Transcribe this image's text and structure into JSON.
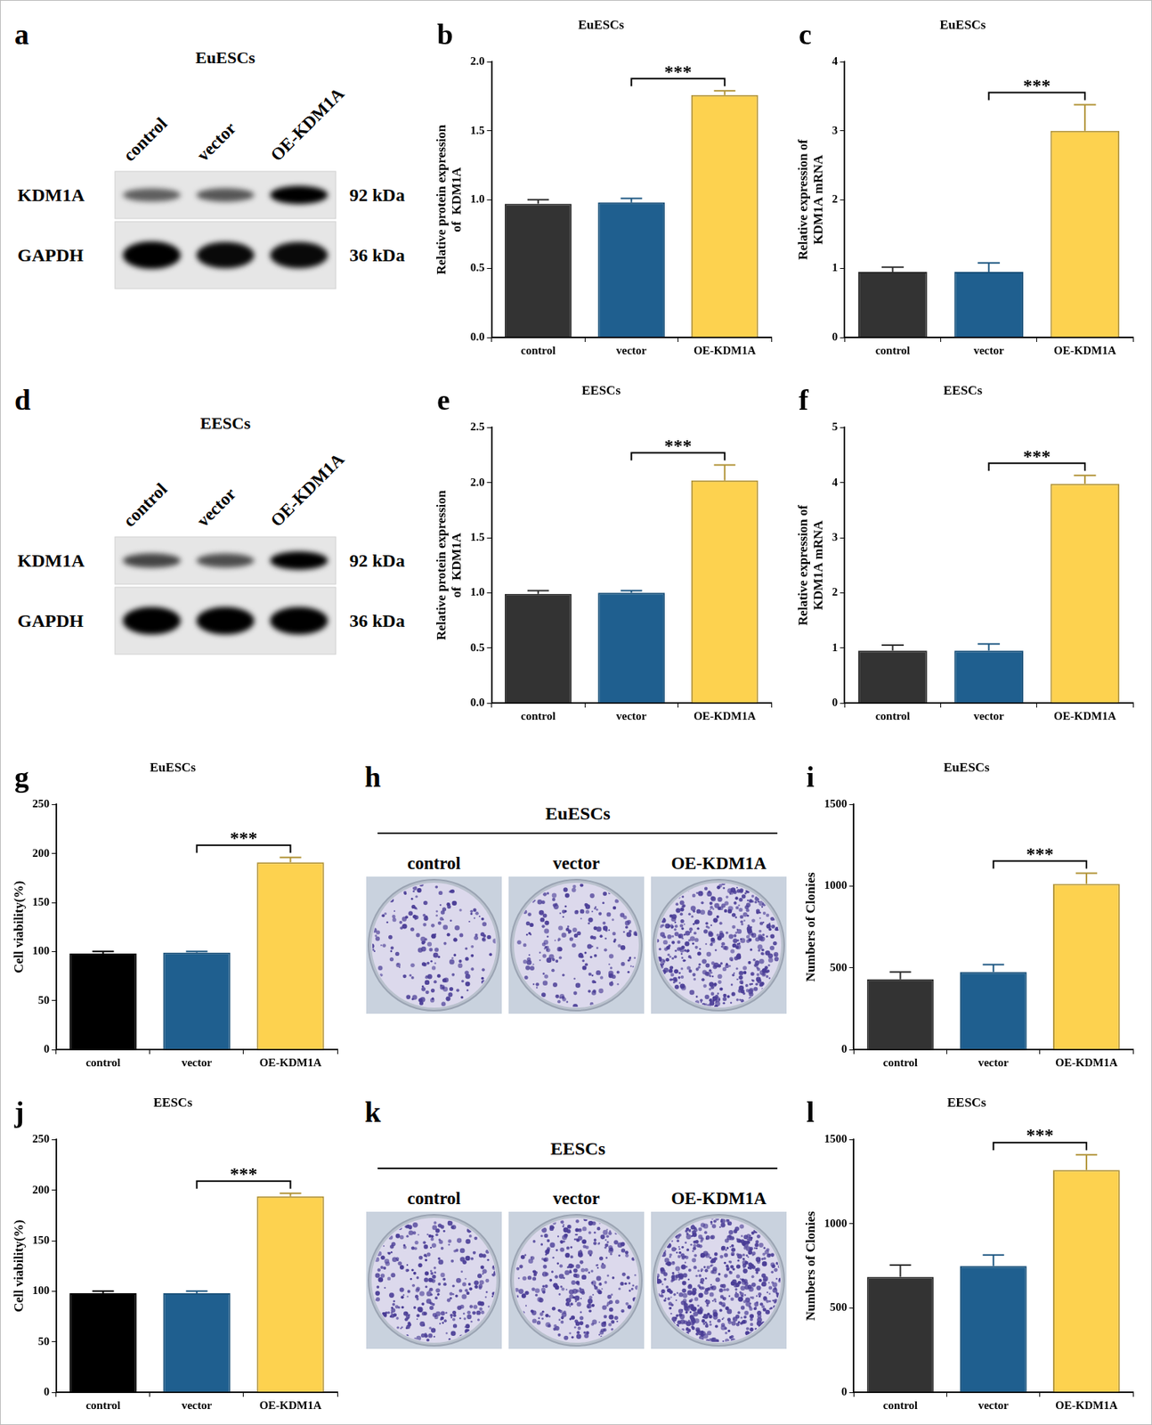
{
  "chart_data": [
    {
      "panel": "b",
      "type": "bar",
      "title": "EuESCs",
      "y_label": [
        "Relative protein expression",
        "of  KDM1A"
      ],
      "categories": [
        "control",
        "vector",
        "OE-KDM1A"
      ],
      "values": [
        0.97,
        0.98,
        1.76
      ],
      "errors": [
        0.03,
        0.03,
        0.03
      ],
      "colors": [
        "#333333",
        "#1f5f8f",
        "#fdd24f"
      ],
      "ylim": [
        0,
        2
      ],
      "yticks": [
        {
          "value": 0,
          "label": "0.0"
        },
        0.5,
        {
          "value": 1,
          "label": "1.0"
        },
        1.5,
        {
          "value": 2,
          "label": "2.0"
        }
      ],
      "significance": {
        "from": "vector",
        "to": "OE-KDM1A",
        "label": "***"
      }
    },
    {
      "panel": "c",
      "type": "bar",
      "title": "EuESCs",
      "y_label": [
        "Relative expression of",
        "KDM1A mRNA"
      ],
      "categories": [
        "control",
        "vector",
        "OE-KDM1A"
      ],
      "values": [
        0.95,
        0.95,
        3.0
      ],
      "errors": [
        0.07,
        0.13,
        0.38
      ],
      "colors": [
        "#333333",
        "#1f5f8f",
        "#fdd24f"
      ],
      "ylim": [
        0,
        4
      ],
      "yticks": [
        0,
        1,
        2,
        3,
        4
      ],
      "significance": {
        "from": "vector",
        "to": "OE-KDM1A",
        "label": "***"
      }
    },
    {
      "panel": "e",
      "type": "bar",
      "title": "EESCs",
      "y_label": [
        "Relative protein expression",
        "of  KDM1A"
      ],
      "categories": [
        "control",
        "vector",
        "OE-KDM1A"
      ],
      "values": [
        0.99,
        1.0,
        2.02
      ],
      "errors": [
        0.03,
        0.02,
        0.14
      ],
      "colors": [
        "#333333",
        "#1f5f8f",
        "#fdd24f"
      ],
      "ylim": [
        0,
        2.5
      ],
      "yticks": [
        {
          "value": 0,
          "label": "0.0"
        },
        0.5,
        {
          "value": 1,
          "label": "1.0"
        },
        1.5,
        {
          "value": 2,
          "label": "2.0"
        },
        2.5
      ],
      "significance": {
        "from": "vector",
        "to": "OE-KDM1A",
        "label": "***"
      }
    },
    {
      "panel": "f",
      "type": "bar",
      "title": "EESCs",
      "y_label": [
        "Relative expression of",
        "KDM1A mRNA"
      ],
      "categories": [
        "control",
        "vector",
        "OE-KDM1A"
      ],
      "values": [
        0.95,
        0.95,
        3.98
      ],
      "errors": [
        0.1,
        0.12,
        0.15
      ],
      "colors": [
        "#333333",
        "#1f5f8f",
        "#fdd24f"
      ],
      "ylim": [
        0,
        5
      ],
      "yticks": [
        0,
        1,
        2,
        3,
        4,
        5
      ],
      "significance": {
        "from": "vector",
        "to": "OE-KDM1A",
        "label": "***"
      }
    },
    {
      "panel": "g",
      "type": "bar",
      "title": "EuESCs",
      "y_label": [
        "Cell viability(%)"
      ],
      "categories": [
        "control",
        "vector",
        "OE-KDM1A"
      ],
      "values": [
        98,
        99,
        191
      ],
      "errors": [
        2,
        1,
        5
      ],
      "colors": [
        "#000000",
        "#1f5f8f",
        "#fdd24f"
      ],
      "ylim": [
        0,
        250
      ],
      "yticks": [
        0,
        50,
        100,
        150,
        200,
        250
      ],
      "significance": {
        "from": "vector",
        "to": "OE-KDM1A",
        "label": "***"
      }
    },
    {
      "panel": "i",
      "type": "bar",
      "title": "EuESCs",
      "y_label": [
        "Numbers of Clonies"
      ],
      "categories": [
        "control",
        "vector",
        "OE-KDM1A"
      ],
      "values": [
        430,
        475,
        1015
      ],
      "errors": [
        45,
        45,
        65
      ],
      "colors": [
        "#333333",
        "#1f5f8f",
        "#fdd24f"
      ],
      "ylim": [
        0,
        1500
      ],
      "yticks": [
        0,
        500,
        1000,
        1500
      ],
      "significance": {
        "from": "vector",
        "to": "OE-KDM1A",
        "label": "***"
      }
    },
    {
      "panel": "j",
      "type": "bar",
      "title": "EESCs",
      "y_label": [
        "Cell viability(%)"
      ],
      "categories": [
        "control",
        "vector",
        "OE-KDM1A"
      ],
      "values": [
        98,
        98,
        194
      ],
      "errors": [
        2,
        2,
        3
      ],
      "colors": [
        "#000000",
        "#1f5f8f",
        "#fdd24f"
      ],
      "ylim": [
        0,
        250
      ],
      "yticks": [
        0,
        50,
        100,
        150,
        200,
        250
      ],
      "significance": {
        "from": "vector",
        "to": "OE-KDM1A",
        "label": "***"
      }
    },
    {
      "panel": "l",
      "type": "bar",
      "title": "EESCs",
      "y_label": [
        "Numbers of Clonies"
      ],
      "categories": [
        "control",
        "vector",
        "OE-KDM1A"
      ],
      "values": [
        685,
        750,
        1320
      ],
      "errors": [
        70,
        65,
        90
      ],
      "colors": [
        "#333333",
        "#1f5f8f",
        "#fdd24f"
      ],
      "ylim": [
        0,
        1500
      ],
      "yticks": [
        0,
        500,
        1000,
        1500
      ],
      "significance": {
        "from": "vector",
        "to": "OE-KDM1A",
        "label": "***"
      }
    }
  ],
  "blots": [
    {
      "panel": "a",
      "title": "EuESCs",
      "lanes": [
        "control",
        "vector",
        "OE-KDM1A"
      ],
      "rows": [
        {
          "label": "KDM1A",
          "size": "92 kDa",
          "intensities": [
            0.45,
            0.5,
            1
          ]
        },
        {
          "label": "GAPDH",
          "size": "36 kDa",
          "intensities": [
            1,
            0.95,
            0.95
          ]
        }
      ]
    },
    {
      "panel": "d",
      "title": "EESCs",
      "lanes": [
        "control",
        "vector",
        "OE-KDM1A"
      ],
      "rows": [
        {
          "label": "KDM1A",
          "size": "92 kDa",
          "intensities": [
            0.6,
            0.55,
            1
          ]
        },
        {
          "label": "GAPDH",
          "size": "36 kDa",
          "intensities": [
            1,
            1,
            1
          ]
        }
      ]
    }
  ],
  "colony_images": [
    {
      "panel": "h",
      "title": "EuESCs",
      "wells": [
        "control",
        "vector",
        "OE-KDM1A"
      ]
    },
    {
      "panel": "k",
      "title": "EESCs",
      "wells": [
        "control",
        "vector",
        "OE-KDM1A"
      ]
    }
  ]
}
